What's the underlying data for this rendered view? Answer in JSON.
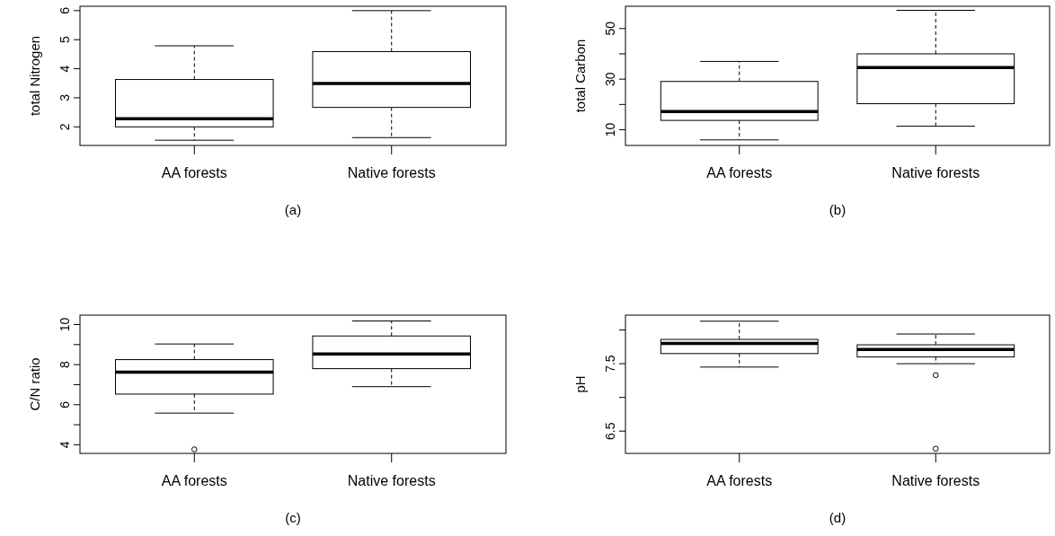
{
  "chart_data": [
    {
      "type": "box",
      "ylabel": "total Nitrogen",
      "xlabel": "(a)",
      "categories": [
        "AA forests",
        "Native forests"
      ],
      "ylim": [
        1.36,
        6.15
      ],
      "yticks": [
        2,
        3,
        4,
        5,
        6
      ],
      "boxes": [
        {
          "low": 1.54,
          "q1": 2.0,
          "median": 2.28,
          "q3": 3.63,
          "high": 4.79
        },
        {
          "low": 1.63,
          "q1": 2.67,
          "median": 3.49,
          "q3": 4.59,
          "high": 6.0
        }
      ]
    },
    {
      "type": "box",
      "ylabel": "total Carbon",
      "xlabel": "(b)",
      "categories": [
        "AA forests",
        "Native forests"
      ],
      "ylim": [
        3.8,
        58.8
      ],
      "yticks": [
        10,
        {
          "value": 20,
          "label": null
        },
        30,
        {
          "value": 40,
          "label": null
        },
        50
      ],
      "boxes": [
        {
          "low": 6,
          "q1": 13.7,
          "median": 17.2,
          "q3": 29.1,
          "high": 37
        },
        {
          "low": 11.4,
          "q1": 20.3,
          "median": 34.6,
          "q3": 40,
          "high": 57.2
        }
      ]
    },
    {
      "type": "box",
      "ylabel": "C/N ratio",
      "xlabel": "(c)",
      "categories": [
        "AA forests",
        "Native forests"
      ],
      "ylim": [
        3.57,
        10.47
      ],
      "yticks": [
        4,
        {
          "value": 5,
          "label": null
        },
        6,
        {
          "value": 7,
          "label": null
        },
        8,
        {
          "value": 9,
          "label": null
        },
        10
      ],
      "boxes": [
        {
          "low": 5.58,
          "q1": 6.53,
          "median": 7.63,
          "q3": 8.25,
          "high": 9.03,
          "outliers": [
            3.77
          ]
        },
        {
          "low": 6.9,
          "q1": 7.8,
          "median": 8.53,
          "q3": 9.43,
          "high": 10.18
        }
      ]
    },
    {
      "type": "box",
      "ylabel": "pH",
      "xlabel": "(d)",
      "categories": [
        "AA forests",
        "Native forests"
      ],
      "ylim": [
        6.17,
        8.22
      ],
      "yticks": [
        6.5,
        {
          "value": 7.0,
          "label": null
        },
        7.5,
        {
          "value": 8.0,
          "label": null
        }
      ],
      "boxes": [
        {
          "low": 7.45,
          "q1": 7.65,
          "median": 7.8,
          "q3": 7.86,
          "high": 8.13
        },
        {
          "low": 7.5,
          "q1": 7.6,
          "median": 7.71,
          "q3": 7.78,
          "high": 7.94,
          "outliers": [
            7.33,
            6.24
          ]
        }
      ]
    }
  ]
}
